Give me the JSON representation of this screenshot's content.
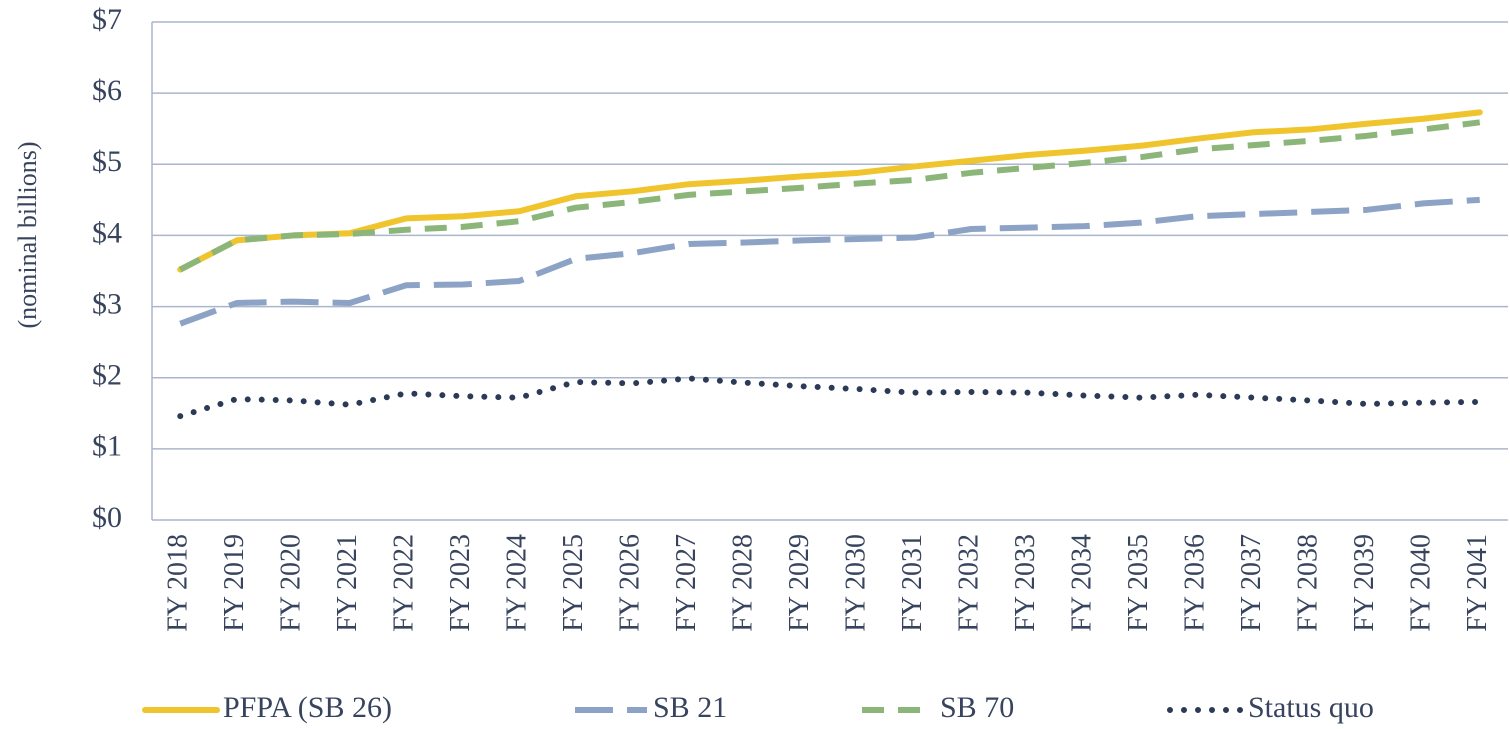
{
  "chart_data": {
    "type": "line",
    "y_label": "(nominal billions)",
    "categories": [
      "FY 2018",
      "FY 2019",
      "FY 2020",
      "FY 2021",
      "FY 2022",
      "FY 2023",
      "FY 2024",
      "FY 2025",
      "FY 2026",
      "FY 2027",
      "FY 2028",
      "FY 2029",
      "FY 2030",
      "FY 2031",
      "FY 2032",
      "FY 2033",
      "FY 2034",
      "FY 2035",
      "FY 2036",
      "FY 2037",
      "FY 2038",
      "FY 2039",
      "FY 2040",
      "FY 2041"
    ],
    "series": [
      {
        "name": "PFPA (SB 26)",
        "color": "#f0c42c",
        "dash": "solid",
        "values": [
          3.52,
          3.93,
          4.0,
          4.03,
          4.24,
          4.27,
          4.34,
          4.55,
          4.62,
          4.72,
          4.77,
          4.83,
          4.88,
          4.97,
          5.05,
          5.13,
          5.19,
          5.26,
          5.36,
          5.45,
          5.49,
          5.57,
          5.64,
          5.73
        ]
      },
      {
        "name": "SB 21",
        "color": "#8da3c6",
        "dash": "longdash",
        "values": [
          2.76,
          3.05,
          3.07,
          3.05,
          3.3,
          3.31,
          3.36,
          3.67,
          3.75,
          3.88,
          3.9,
          3.93,
          3.95,
          3.97,
          4.09,
          4.11,
          4.13,
          4.18,
          4.27,
          4.3,
          4.33,
          4.36,
          4.45,
          4.5
        ]
      },
      {
        "name": "SB 70",
        "color": "#8cb679",
        "dash": "dashed",
        "values": [
          3.52,
          3.93,
          4.0,
          4.02,
          4.08,
          4.12,
          4.2,
          4.39,
          4.47,
          4.57,
          4.62,
          4.67,
          4.73,
          4.78,
          4.88,
          4.95,
          5.02,
          5.1,
          5.21,
          5.27,
          5.33,
          5.4,
          5.49,
          5.59
        ]
      },
      {
        "name": "Status quo",
        "color": "#2b3a57",
        "dash": "dotted",
        "values": [
          1.46,
          1.7,
          1.68,
          1.62,
          1.78,
          1.74,
          1.72,
          1.94,
          1.92,
          1.99,
          1.93,
          1.88,
          1.84,
          1.79,
          1.8,
          1.79,
          1.75,
          1.72,
          1.76,
          1.72,
          1.68,
          1.63,
          1.65,
          1.66
        ]
      }
    ],
    "ylim": [
      0,
      7
    ],
    "yticks": [
      {
        "value": 0,
        "label": "$0"
      },
      {
        "value": 1,
        "label": "$1"
      },
      {
        "value": 2,
        "label": "$2"
      },
      {
        "value": 3,
        "label": "$3"
      },
      {
        "value": 4,
        "label": "$4"
      },
      {
        "value": 5,
        "label": "$5"
      },
      {
        "value": 6,
        "label": "$6"
      },
      {
        "value": 7,
        "label": "$7"
      }
    ],
    "grid": true,
    "legend": "bottom"
  }
}
